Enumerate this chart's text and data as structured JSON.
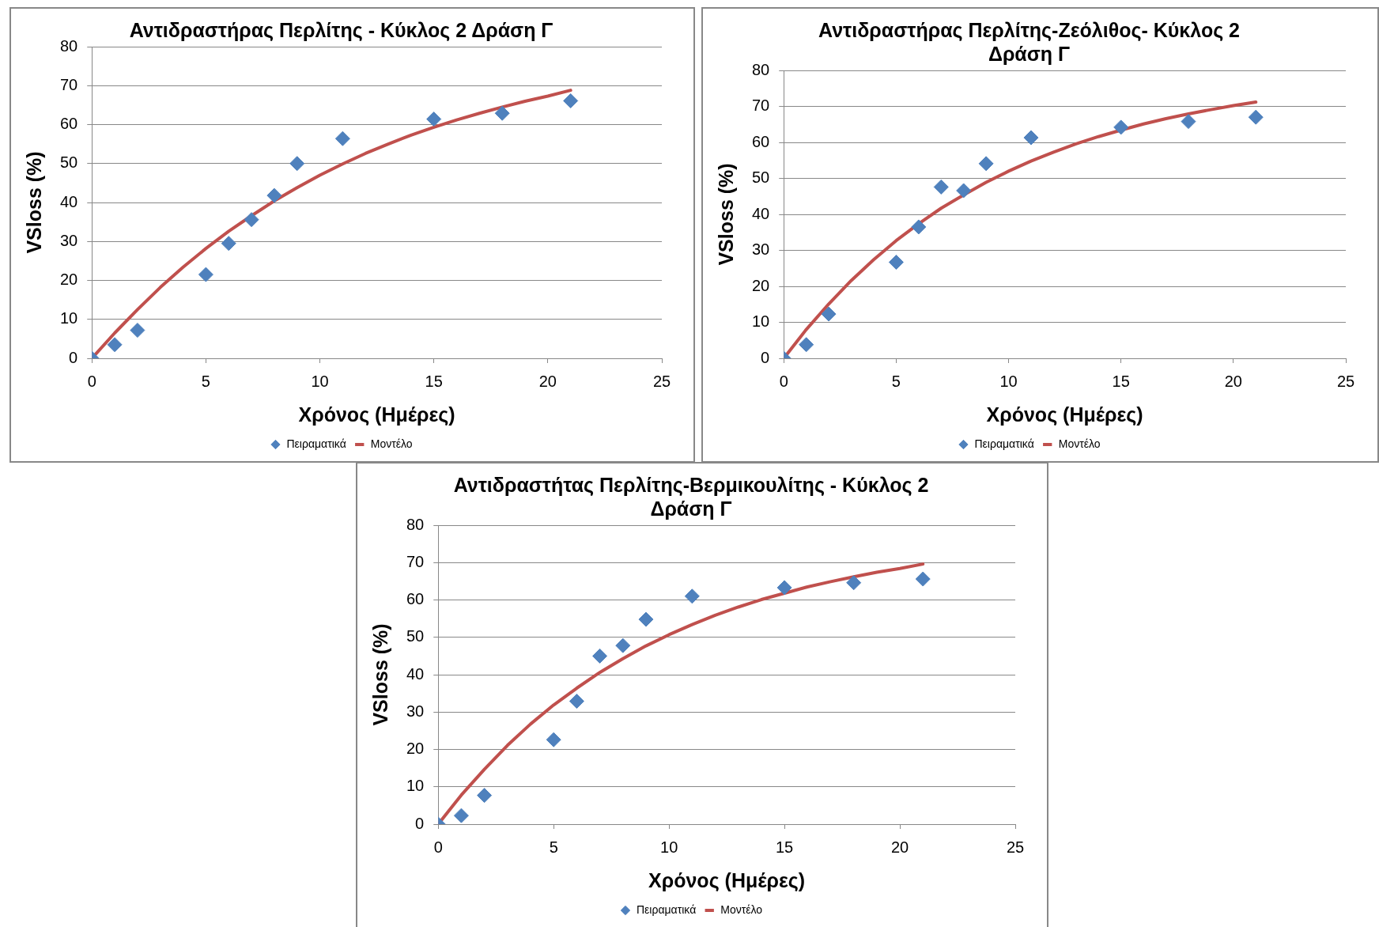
{
  "chart_data": [
    {
      "type": "scatter",
      "title": "Αντιδραστήρας Περλίτης - Κύκλος 2 Δράση Γ",
      "xlabel": "Χρόνος (Ημέρες)",
      "ylabel": "VSloss (%)",
      "xlim": [
        0,
        25
      ],
      "ylim": [
        0,
        80
      ],
      "xticks": [
        0,
        5,
        10,
        15,
        20,
        25
      ],
      "yticks": [
        0,
        10,
        20,
        30,
        40,
        50,
        60,
        70,
        80
      ],
      "grid": "y",
      "legend": "bottom",
      "series": [
        {
          "name": "Πειραματικά",
          "type": "scatter",
          "marker": "diamond",
          "color": "#4f81bd",
          "x": [
            0,
            1,
            2,
            5,
            6,
            7,
            8,
            9,
            11,
            15,
            18,
            21
          ],
          "values": [
            0,
            3.5,
            7.2,
            21.5,
            29.5,
            35.6,
            41.8,
            50,
            56.4,
            61.4,
            62.9,
            66.1
          ]
        },
        {
          "name": "Μοντέλο",
          "type": "line",
          "marker": "none",
          "line_style": "solid",
          "color": "#c0504d",
          "x": [
            0,
            1,
            2,
            3,
            4,
            5,
            6,
            7,
            8,
            9,
            10,
            11,
            12,
            13,
            14,
            15,
            16,
            17,
            18,
            19,
            20,
            21
          ],
          "values": [
            0,
            6.5,
            12.5,
            18.2,
            23.4,
            28.2,
            32.6,
            36.6,
            40.4,
            43.8,
            47,
            49.9,
            52.6,
            55,
            57.3,
            59.3,
            61.2,
            62.9,
            64.5,
            66,
            67.3,
            68.8
          ]
        }
      ]
    },
    {
      "type": "scatter",
      "title": "Αντιδραστήρας Περλίτης-Ζεόλιθος- Κύκλος 2 Δράση Γ",
      "xlabel": "Χρόνος (Ημέρες)",
      "ylabel": "VSloss (%)",
      "xlim": [
        0,
        25
      ],
      "ylim": [
        0,
        80
      ],
      "xticks": [
        0,
        5,
        10,
        15,
        20,
        25
      ],
      "yticks": [
        0,
        10,
        20,
        30,
        40,
        50,
        60,
        70,
        80
      ],
      "grid": "y",
      "legend": "bottom",
      "series": [
        {
          "name": "Πειραματικά",
          "type": "scatter",
          "marker": "diamond",
          "color": "#4f81bd",
          "x": [
            0,
            1,
            2,
            5,
            6,
            7,
            8,
            9,
            11,
            15,
            18,
            21
          ],
          "values": [
            0,
            3.8,
            12.3,
            26.7,
            36.5,
            47.6,
            46.6,
            54.1,
            61.3,
            64.2,
            65.8,
            67
          ]
        },
        {
          "name": "Μοντέλο",
          "type": "line",
          "marker": "none",
          "line_style": "solid",
          "color": "#c0504d",
          "x": [
            0,
            1,
            2,
            3,
            4,
            5,
            6,
            7,
            8,
            9,
            10,
            11,
            12,
            13,
            14,
            15,
            16,
            17,
            18,
            19,
            20,
            21
          ],
          "values": [
            0,
            8,
            15.1,
            21.6,
            27.4,
            32.7,
            37.4,
            41.7,
            45.4,
            48.9,
            52,
            54.8,
            57.3,
            59.6,
            61.6,
            63.4,
            65.1,
            66.6,
            67.9,
            69.1,
            70.2,
            71.2
          ]
        }
      ]
    },
    {
      "type": "scatter",
      "title": "Αντιδραστήτας Περλίτης-Βερμικουλίτης - Κύκλος 2 Δράση Γ",
      "xlabel": "Χρόνος (Ημέρες)",
      "ylabel": "VSloss (%)",
      "xlim": [
        0,
        25
      ],
      "ylim": [
        0,
        80
      ],
      "xticks": [
        0,
        5,
        10,
        15,
        20,
        25
      ],
      "yticks": [
        0,
        10,
        20,
        30,
        40,
        50,
        60,
        70,
        80
      ],
      "grid": "y",
      "legend": "bottom",
      "series": [
        {
          "name": "Πειραματικά",
          "type": "scatter",
          "marker": "diamond",
          "color": "#4f81bd",
          "x": [
            0,
            1,
            2,
            5,
            6,
            7,
            8,
            9,
            11,
            15,
            18,
            21
          ],
          "values": [
            0,
            2.3,
            7.7,
            22.6,
            32.9,
            45,
            47.8,
            54.8,
            61,
            63.3,
            64.6,
            65.6
          ]
        },
        {
          "name": "Μοντέλο",
          "type": "line",
          "marker": "none",
          "line_style": "solid",
          "color": "#c0504d",
          "x": [
            0,
            1,
            2,
            3,
            4,
            5,
            6,
            7,
            8,
            9,
            10,
            11,
            12,
            13,
            14,
            15,
            16,
            17,
            18,
            19,
            20,
            21
          ],
          "values": [
            0,
            7.8,
            14.7,
            21.1,
            26.8,
            31.9,
            36.4,
            40.6,
            44.3,
            47.7,
            50.7,
            53.4,
            55.9,
            58.1,
            60.1,
            61.8,
            63.5,
            64.9,
            66.2,
            67.4,
            68.4,
            69.6
          ]
        }
      ]
    }
  ]
}
